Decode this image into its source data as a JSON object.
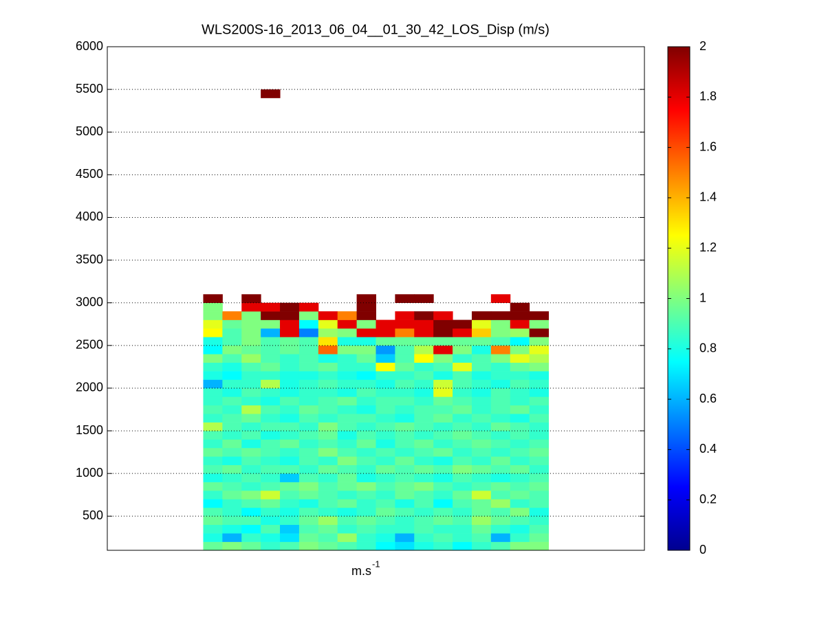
{
  "chart_data": {
    "type": "heatmap",
    "title": "WLS200S-16_2013_06_04__01_30_42_LOS_Disp (m/s)",
    "xlabel": "m.s",
    "xlabel_superscript": "-1",
    "x": [
      1,
      2,
      3,
      4,
      5,
      6,
      7,
      8,
      9,
      10,
      11,
      12,
      13,
      14,
      15,
      16,
      17,
      18
    ],
    "xlim": [
      -4.5,
      23.5
    ],
    "y": [
      150,
      250,
      350,
      450,
      550,
      650,
      750,
      850,
      950,
      1050,
      1150,
      1250,
      1350,
      1450,
      1550,
      1650,
      1750,
      1850,
      1950,
      2050,
      2150,
      2250,
      2350,
      2450,
      2550,
      2650,
      2750,
      2850,
      2950,
      3050,
      5450
    ],
    "ylim": [
      100,
      6000
    ],
    "yticks": [
      500,
      1000,
      1500,
      2000,
      2500,
      3000,
      3500,
      4000,
      4500,
      5000,
      5500,
      6000
    ],
    "grid": true,
    "colormap": "jet",
    "clim": [
      0,
      2
    ],
    "cticks": [
      0,
      0.2,
      0.4,
      0.6,
      0.8,
      1,
      1.2,
      1.4,
      1.6,
      1.8,
      2
    ],
    "z": [
      [
        0.95,
        1.0,
        0.95,
        0.85,
        0.9,
        1.0,
        0.95,
        0.9,
        0.85,
        0.75,
        0.7,
        0.8,
        0.85,
        0.75,
        0.85,
        0.9,
        1.0,
        1.0
      ],
      [
        0.8,
        0.6,
        0.85,
        0.8,
        0.7,
        0.95,
        0.9,
        1.05,
        0.85,
        0.8,
        0.6,
        0.85,
        0.9,
        0.85,
        0.9,
        0.6,
        0.85,
        0.95
      ],
      [
        0.85,
        0.8,
        0.75,
        0.9,
        0.65,
        0.9,
        0.95,
        0.85,
        0.9,
        0.85,
        0.85,
        0.9,
        0.85,
        0.85,
        0.95,
        0.85,
        0.8,
        0.9
      ],
      [
        0.95,
        0.9,
        0.9,
        0.8,
        0.85,
        0.95,
        1.05,
        0.9,
        0.95,
        0.9,
        0.85,
        0.9,
        0.95,
        0.9,
        1.05,
        0.95,
        0.9,
        0.85
      ],
      [
        0.9,
        0.85,
        0.75,
        0.85,
        0.8,
        0.9,
        0.85,
        0.8,
        0.85,
        0.95,
        0.9,
        0.85,
        0.9,
        0.85,
        0.95,
        0.9,
        1.0,
        0.8
      ],
      [
        0.75,
        0.85,
        0.9,
        0.95,
        0.85,
        0.8,
        0.9,
        0.95,
        0.85,
        0.9,
        0.8,
        0.9,
        0.75,
        0.9,
        0.95,
        1.05,
        0.85,
        0.9
      ],
      [
        0.85,
        0.95,
        1.0,
        1.15,
        0.9,
        0.95,
        0.9,
        0.85,
        0.9,
        0.85,
        0.95,
        0.9,
        0.85,
        0.95,
        1.15,
        0.9,
        0.95,
        0.9
      ],
      [
        0.95,
        0.9,
        0.85,
        0.9,
        0.95,
        1.0,
        0.9,
        0.95,
        1.0,
        0.9,
        0.95,
        1.0,
        0.9,
        0.85,
        0.9,
        0.95,
        0.9,
        0.95
      ],
      [
        0.8,
        0.85,
        0.9,
        0.85,
        0.65,
        0.9,
        0.85,
        0.95,
        0.8,
        0.85,
        0.9,
        0.85,
        0.8,
        0.9,
        0.85,
        0.8,
        0.85,
        0.9
      ],
      [
        0.9,
        0.95,
        0.85,
        0.9,
        0.9,
        0.85,
        0.95,
        0.9,
        0.85,
        0.95,
        0.9,
        0.95,
        0.9,
        1.0,
        0.95,
        0.9,
        0.95,
        0.85
      ],
      [
        0.85,
        0.8,
        0.9,
        0.85,
        0.8,
        0.9,
        0.85,
        1.0,
        0.9,
        0.85,
        0.95,
        0.85,
        0.8,
        0.9,
        0.85,
        0.95,
        0.85,
        0.9
      ],
      [
        0.95,
        0.9,
        0.95,
        0.9,
        0.85,
        0.9,
        1.0,
        0.9,
        0.85,
        0.9,
        0.85,
        0.9,
        0.95,
        0.85,
        0.9,
        0.85,
        0.9,
        0.95
      ],
      [
        0.85,
        0.95,
        0.8,
        0.9,
        0.95,
        0.85,
        0.9,
        0.85,
        0.95,
        0.8,
        0.9,
        0.95,
        0.85,
        0.9,
        0.95,
        0.9,
        0.85,
        0.9
      ],
      [
        0.9,
        0.85,
        0.9,
        0.8,
        0.85,
        0.9,
        0.95,
        0.8,
        0.9,
        0.85,
        0.9,
        0.85,
        0.9,
        0.95,
        0.9,
        0.85,
        0.9,
        0.85
      ],
      [
        1.1,
        0.9,
        0.85,
        0.9,
        0.9,
        0.85,
        1.0,
        0.9,
        0.85,
        0.9,
        0.95,
        0.9,
        0.85,
        0.9,
        0.85,
        0.95,
        0.9,
        0.85
      ],
      [
        0.85,
        0.9,
        0.95,
        0.85,
        0.8,
        0.9,
        0.85,
        0.9,
        0.9,
        0.85,
        0.8,
        0.9,
        0.95,
        0.85,
        0.9,
        0.85,
        0.8,
        0.9
      ],
      [
        0.9,
        0.85,
        1.1,
        0.9,
        0.85,
        0.95,
        0.9,
        0.85,
        0.8,
        0.9,
        0.85,
        0.9,
        0.9,
        0.95,
        0.85,
        0.9,
        0.95,
        0.85
      ],
      [
        0.85,
        0.9,
        0.85,
        0.8,
        0.9,
        0.85,
        0.9,
        0.95,
        0.85,
        0.9,
        0.9,
        0.85,
        0.95,
        0.9,
        0.85,
        0.9,
        0.85,
        0.9
      ],
      [
        0.85,
        0.8,
        0.9,
        0.85,
        0.8,
        0.85,
        0.85,
        0.8,
        0.9,
        0.85,
        0.85,
        0.8,
        1.2,
        0.85,
        0.8,
        0.9,
        0.85,
        0.8
      ],
      [
        0.6,
        0.85,
        0.85,
        1.1,
        0.8,
        0.85,
        0.9,
        0.85,
        0.85,
        0.8,
        0.9,
        0.85,
        1.15,
        0.9,
        0.85,
        0.8,
        0.9,
        0.85
      ],
      [
        0.8,
        0.75,
        0.85,
        0.85,
        0.8,
        0.8,
        0.85,
        0.8,
        0.75,
        0.85,
        0.85,
        0.9,
        0.8,
        0.9,
        0.8,
        0.85,
        0.85,
        0.8
      ],
      [
        0.85,
        0.8,
        0.9,
        0.95,
        0.85,
        0.9,
        0.95,
        0.85,
        0.85,
        1.25,
        0.95,
        0.85,
        0.9,
        1.2,
        0.9,
        0.85,
        0.95,
        1.0
      ],
      [
        1.0,
        0.9,
        1.05,
        0.9,
        0.85,
        0.9,
        0.8,
        0.85,
        0.95,
        0.65,
        0.9,
        1.25,
        1.0,
        0.85,
        0.9,
        1.0,
        1.2,
        1.1
      ],
      [
        0.75,
        1.0,
        0.95,
        0.9,
        0.95,
        0.9,
        1.55,
        1.0,
        1.0,
        0.55,
        0.9,
        1.1,
        1.8,
        1.0,
        0.8,
        1.5,
        1.0,
        1.2
      ],
      [
        0.8,
        0.9,
        1.0,
        0.9,
        0.95,
        0.9,
        1.3,
        0.8,
        0.8,
        0.95,
        0.95,
        0.95,
        0.95,
        0.95,
        0.95,
        0.9,
        0.75,
        1.0
      ],
      [
        1.25,
        0.9,
        1.0,
        0.6,
        1.8,
        0.5,
        1.05,
        1.0,
        1.8,
        1.8,
        1.5,
        1.8,
        2,
        1.8,
        1.35,
        1.0,
        1.05,
        2
      ],
      [
        1.2,
        0.95,
        1.0,
        1.0,
        1.8,
        0.75,
        1.2,
        1.8,
        1.0,
        1.8,
        1.8,
        1.8,
        2,
        2,
        1.2,
        1.0,
        1.8,
        1.0
      ],
      [
        1.0,
        1.5,
        1.0,
        2,
        2,
        1.0,
        1.8,
        1.5,
        2,
        null,
        1.8,
        2,
        1.8,
        null,
        2,
        2,
        2,
        2
      ],
      [
        1.0,
        null,
        1.8,
        1.8,
        2,
        1.8,
        null,
        null,
        2,
        null,
        null,
        null,
        null,
        null,
        null,
        null,
        2,
        null
      ],
      [
        2,
        null,
        2,
        null,
        null,
        null,
        null,
        null,
        2,
        null,
        2,
        2,
        null,
        null,
        null,
        1.8,
        null,
        null
      ],
      [
        null,
        null,
        null,
        2,
        null,
        null,
        null,
        null,
        null,
        null,
        null,
        null,
        null,
        null,
        null,
        null,
        null,
        null
      ]
    ]
  }
}
